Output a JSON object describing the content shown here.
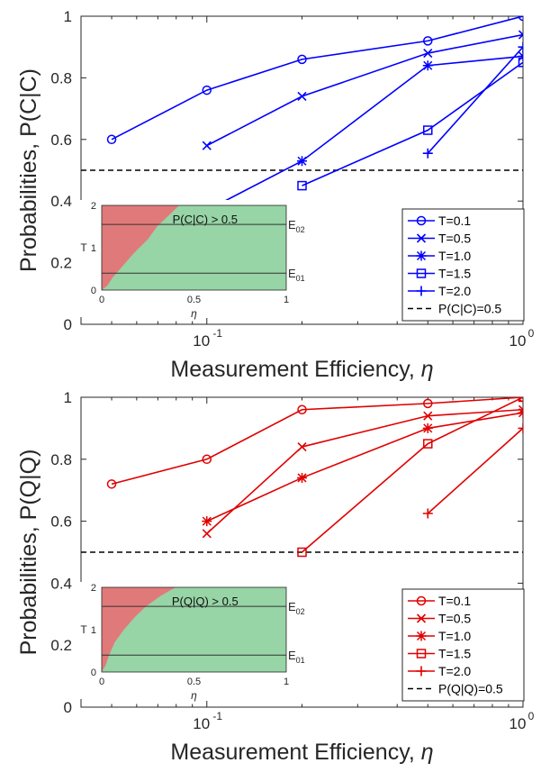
{
  "colors": {
    "panel_a": "#0000ff",
    "panel_b": "#e00000",
    "threshold": "#000000",
    "region_fail": "#e07a7a",
    "region_pass": "#97d4a6"
  },
  "chart_data": [
    {
      "type": "line",
      "ylabel": "Probabilities, P(C|C)",
      "xlabel": "Measurement Efficiency, ",
      "xlabel_symbol": "η",
      "xscale": "log",
      "xlim": [
        0.04,
        1.0
      ],
      "ylim": [
        0,
        1
      ],
      "yticks": [
        "0",
        "0.2",
        "0.4",
        "0.6",
        "0.8",
        "1"
      ],
      "xticks": [
        {
          "base": "10",
          "exp": "-1"
        },
        {
          "base": "10",
          "exp": "0"
        }
      ],
      "threshold": {
        "y": 0.5,
        "label": "P(C|C)=0.5"
      },
      "series": [
        {
          "name": "T=0.1",
          "marker": "circle",
          "x": [
            0.05,
            0.1,
            0.2,
            0.5,
            1.0
          ],
          "y": [
            0.6,
            0.76,
            0.86,
            0.92,
            1.0
          ]
        },
        {
          "name": "T=0.5",
          "marker": "x",
          "x": [
            0.1,
            0.2,
            0.5,
            1.0
          ],
          "y": [
            0.58,
            0.74,
            0.88,
            0.94
          ]
        },
        {
          "name": "T=1.0",
          "marker": "star",
          "x": [
            0.1,
            0.2,
            0.5,
            1.0
          ],
          "y": [
            0.37,
            0.53,
            0.84,
            0.87
          ]
        },
        {
          "name": "T=1.5",
          "marker": "square",
          "x": [
            0.2,
            0.5,
            1.0
          ],
          "y": [
            0.45,
            0.63,
            0.85
          ]
        },
        {
          "name": "T=2.0",
          "marker": "plus",
          "x": [
            0.5,
            1.0
          ],
          "y": [
            0.555,
            0.9
          ]
        }
      ],
      "inset": {
        "label": "P(C|C) > 0.5",
        "ylabel": "T",
        "xlabel": "η",
        "xticks": [
          "0",
          "0.5",
          "1"
        ],
        "yticks": [
          "0",
          "1",
          "2"
        ],
        "lines": [
          {
            "T": 0.4,
            "label_main": "E",
            "label_sub": "01"
          },
          {
            "T": 1.55,
            "label_main": "E",
            "label_sub": "02"
          }
        ],
        "boundary": [
          [
            0.0,
            0.0
          ],
          [
            0.03,
            0.1
          ],
          [
            0.06,
            0.3
          ],
          [
            0.12,
            0.6
          ],
          [
            0.18,
            0.9
          ],
          [
            0.25,
            1.2
          ],
          [
            0.3,
            1.5
          ],
          [
            0.36,
            1.75
          ],
          [
            0.42,
            2.0
          ]
        ]
      }
    },
    {
      "type": "line",
      "ylabel": "Probabilities, P(Q|Q)",
      "xlabel": "Measurement Efficiency, ",
      "xlabel_symbol": "η",
      "xscale": "log",
      "xlim": [
        0.04,
        1.0
      ],
      "ylim": [
        0,
        1
      ],
      "yticks": [
        "0",
        "0.2",
        "0.4",
        "0.6",
        "0.8",
        "1"
      ],
      "xticks": [
        {
          "base": "10",
          "exp": "-1"
        },
        {
          "base": "10",
          "exp": "0"
        }
      ],
      "threshold": {
        "y": 0.5,
        "label": "P(Q|Q)=0.5"
      },
      "series": [
        {
          "name": "T=0.1",
          "marker": "circle",
          "x": [
            0.05,
            0.1,
            0.2,
            0.5,
            1.0
          ],
          "y": [
            0.72,
            0.8,
            0.96,
            0.98,
            1.0
          ]
        },
        {
          "name": "T=0.5",
          "marker": "x",
          "x": [
            0.1,
            0.2,
            0.5,
            1.0
          ],
          "y": [
            0.56,
            0.84,
            0.94,
            0.96
          ]
        },
        {
          "name": "T=1.0",
          "marker": "star",
          "x": [
            0.1,
            0.2,
            0.5,
            1.0
          ],
          "y": [
            0.6,
            0.74,
            0.9,
            0.95
          ]
        },
        {
          "name": "T=1.5",
          "marker": "square",
          "x": [
            0.2,
            0.5,
            1.0
          ],
          "y": [
            0.5,
            0.85,
            1.0
          ]
        },
        {
          "name": "T=2.0",
          "marker": "plus",
          "x": [
            0.5,
            1.0
          ],
          "y": [
            0.625,
            0.9
          ]
        }
      ],
      "inset": {
        "label": "P(Q|Q) > 0.5",
        "ylabel": "T",
        "xlabel": "η",
        "xticks": [
          "0",
          "0.5",
          "1"
        ],
        "yticks": [
          "0",
          "1",
          "2"
        ],
        "lines": [
          {
            "T": 0.4,
            "label_main": "E",
            "label_sub": "01"
          },
          {
            "T": 1.55,
            "label_main": "E",
            "label_sub": "02"
          }
        ],
        "boundary": [
          [
            0.0,
            0.0
          ],
          [
            0.02,
            0.15
          ],
          [
            0.04,
            0.4
          ],
          [
            0.07,
            0.7
          ],
          [
            0.12,
            1.0
          ],
          [
            0.18,
            1.3
          ],
          [
            0.24,
            1.55
          ],
          [
            0.32,
            1.8
          ],
          [
            0.4,
            2.0
          ]
        ]
      }
    }
  ]
}
